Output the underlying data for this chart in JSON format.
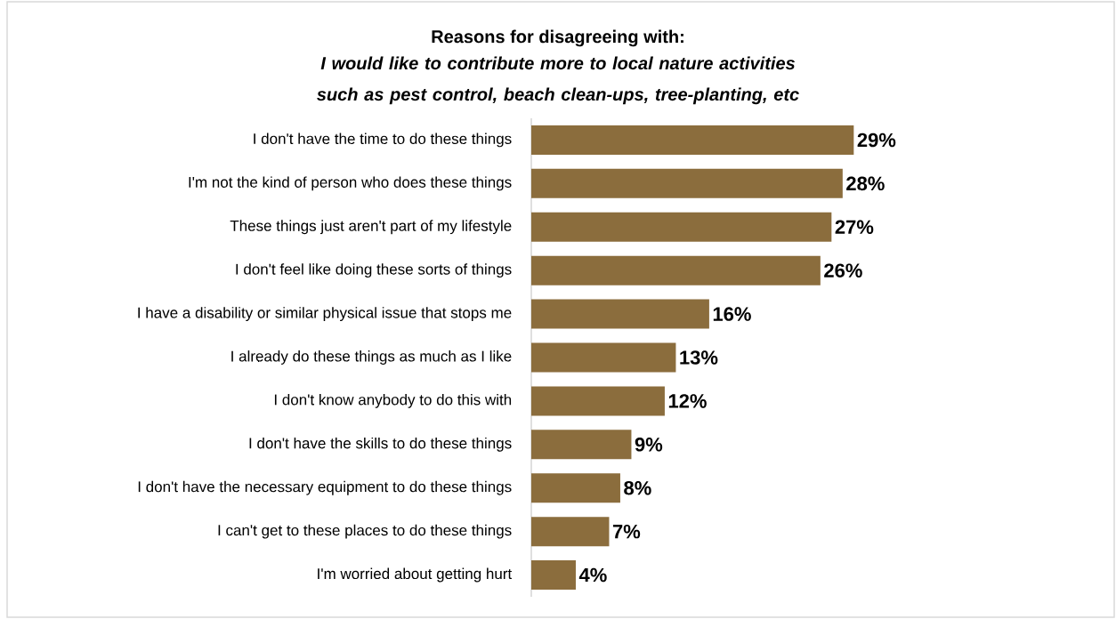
{
  "chart_data": {
    "type": "bar",
    "orientation": "horizontal",
    "title": "Reasons for disagreeing with:",
    "subtitle": "I would like to contribute more to local nature activities such as pest control, beach clean-ups, tree-planting, etc",
    "categories": [
      "I don't have the time to do these things",
      "I'm not the kind of person who does these things",
      "These things just aren't part of my lifestyle",
      "I don't feel like doing these sorts of things",
      "I have a disability or similar physical issue that stops me",
      "I already do these things as much as I like",
      "I don't know anybody to do this with",
      "I don't have the skills to do these things",
      "I don't have the necessary equipment to do these things",
      "I can't get to these places to do these things",
      "I'm worried about getting hurt"
    ],
    "values": [
      29,
      28,
      27,
      26,
      16,
      13,
      12,
      9,
      8,
      7,
      4
    ],
    "value_labels": [
      "29%",
      "28%",
      "27%",
      "26%",
      "16%",
      "13%",
      "12%",
      "9%",
      "8%",
      "7%",
      "4%"
    ],
    "color": "#8b6d3d"
  }
}
